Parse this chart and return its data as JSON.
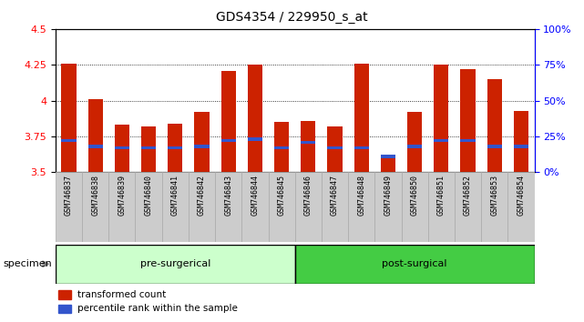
{
  "title": "GDS4354 / 229950_s_at",
  "samples": [
    "GSM746837",
    "GSM746838",
    "GSM746839",
    "GSM746840",
    "GSM746841",
    "GSM746842",
    "GSM746843",
    "GSM746844",
    "GSM746845",
    "GSM746846",
    "GSM746847",
    "GSM746848",
    "GSM746849",
    "GSM746850",
    "GSM746851",
    "GSM746852",
    "GSM746853",
    "GSM746854"
  ],
  "red_values": [
    4.26,
    4.01,
    3.83,
    3.82,
    3.84,
    3.92,
    4.21,
    4.25,
    3.85,
    3.86,
    3.82,
    4.26,
    3.62,
    3.92,
    4.25,
    4.22,
    4.15,
    3.93
  ],
  "blue_values": [
    3.72,
    3.68,
    3.67,
    3.67,
    3.67,
    3.68,
    3.72,
    3.73,
    3.67,
    3.71,
    3.67,
    3.67,
    3.61,
    3.68,
    3.72,
    3.72,
    3.68,
    3.68
  ],
  "y_min": 3.5,
  "y_max": 4.5,
  "y_ticks_left": [
    3.5,
    3.75,
    4.0,
    4.25,
    4.5
  ],
  "y_ticks_right": [
    0,
    25,
    50,
    75,
    100
  ],
  "y_ticks_right_pct": [
    "0%",
    "25%",
    "50%",
    "75%",
    "100%"
  ],
  "pre_surgical_count": 9,
  "post_surgical_count": 9,
  "pre_label": "pre-surgerical",
  "post_label": "post-surgical",
  "red_color": "#cc2200",
  "blue_color": "#3355cc",
  "bar_width": 0.55,
  "legend_red": "transformed count",
  "legend_blue": "percentile rank within the sample",
  "specimen_label": "specimen",
  "pre_bg": "#ccffcc",
  "post_bg": "#44cc44",
  "xticklabel_bg": "#dddddd",
  "blue_bar_height": 0.022
}
